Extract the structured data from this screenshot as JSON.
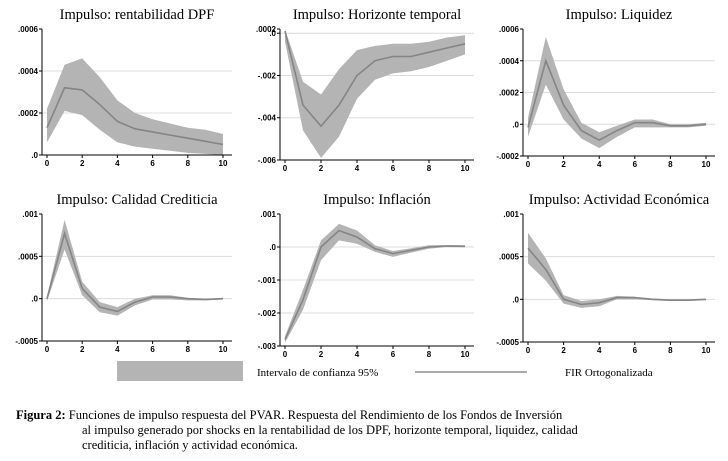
{
  "chart_data": [
    {
      "type": "line",
      "title": "Impulso: rentabilidad DPF",
      "x": [
        0,
        1,
        2,
        3,
        4,
        5,
        6,
        7,
        8,
        9,
        10
      ],
      "xticks": [
        "0",
        "2",
        "4",
        "6",
        "8",
        "10"
      ],
      "ylim": [
        0,
        0.0006
      ],
      "yticks": [
        0,
        0.0002,
        0.0004,
        0.0006
      ],
      "yticklabels": [
        ".0",
        ".0002",
        ".0004",
        ".0006"
      ],
      "series": [
        {
          "role": "irf",
          "values": [
            0.00013,
            0.00032,
            0.00031,
            0.00024,
            0.00016,
            0.000125,
            0.00011,
            9.5e-05,
            8e-05,
            6.5e-05,
            5e-05
          ]
        },
        {
          "role": "upper",
          "values": [
            0.00022,
            0.00043,
            0.00046,
            0.00037,
            0.00026,
            0.0002,
            0.00017,
            0.00015,
            0.00013,
            0.00012,
            0.0001
          ]
        },
        {
          "role": "lower",
          "values": [
            6e-05,
            0.00021,
            0.00019,
            0.00012,
            6e-05,
            4e-05,
            3e-05,
            2e-05,
            1e-05,
            5e-06,
            0.0
          ]
        }
      ]
    },
    {
      "type": "line",
      "title": "Impulso: Horizonte temporal",
      "x": [
        0,
        1,
        2,
        3,
        4,
        5,
        6,
        7,
        8,
        9,
        10
      ],
      "xticks": [
        "0",
        "2",
        "4",
        "6",
        "8",
        "10"
      ],
      "ylim": [
        -0.006,
        0.0002
      ],
      "yticks": [
        -0.006,
        -0.004,
        -0.002,
        0.0,
        0.0002
      ],
      "yticklabels": [
        "-.006",
        "-.004",
        "-.002",
        ".0",
        ".0002"
      ],
      "series": [
        {
          "role": "irf",
          "values": [
            0.0001,
            -0.0034,
            -0.0044,
            -0.0034,
            -0.002,
            -0.0013,
            -0.0011,
            -0.0011,
            -0.0009,
            -0.0007,
            -0.0005
          ]
        },
        {
          "role": "upper",
          "values": [
            0.00018,
            -0.0023,
            -0.0029,
            -0.0017,
            -0.0008,
            -0.0006,
            -0.0005,
            -0.0005,
            -0.0004,
            -0.0002,
            -0.0001
          ]
        },
        {
          "role": "lower",
          "values": [
            -0.0004,
            -0.0046,
            -0.0059,
            -0.0049,
            -0.0031,
            -0.0022,
            -0.0019,
            -0.0018,
            -0.0016,
            -0.0013,
            -0.001
          ]
        }
      ]
    },
    {
      "type": "line",
      "title": "Impulso: Liquidez",
      "x": [
        0,
        1,
        2,
        3,
        4,
        5,
        6,
        7,
        8,
        9,
        10
      ],
      "xticks": [
        "0",
        "2",
        "4",
        "6",
        "8",
        "10"
      ],
      "ylim": [
        -0.0002,
        0.0006
      ],
      "yticks": [
        -0.0002,
        0.0,
        0.0002,
        0.0004,
        0.0006
      ],
      "yticklabels": [
        "-.0002",
        ".0",
        ".0002",
        ".0004",
        ".0006"
      ],
      "series": [
        {
          "role": "irf",
          "values": [
            -2e-05,
            0.0004,
            0.00012,
            -4e-05,
            -0.0001,
            -4e-05,
            1e-05,
            1e-05,
            -1e-05,
            -1e-05,
            0.0
          ]
        },
        {
          "role": "upper",
          "values": [
            4e-05,
            0.00055,
            0.00022,
            1e-05,
            -5e-05,
            -1e-05,
            3e-05,
            3e-05,
            0.0,
            0.0,
            1e-05
          ]
        },
        {
          "role": "lower",
          "values": [
            -8e-05,
            0.00025,
            3e-05,
            -9e-05,
            -0.00015,
            -8e-05,
            -2e-05,
            -2e-05,
            -2e-05,
            -2e-05,
            -1e-05
          ]
        }
      ]
    },
    {
      "type": "line",
      "title": "Impulso: Calidad Crediticia",
      "x": [
        0,
        1,
        2,
        3,
        4,
        5,
        6,
        7,
        8,
        9,
        10
      ],
      "xticks": [
        "0",
        "2",
        "4",
        "6",
        "8",
        "10"
      ],
      "ylim": [
        -0.0005,
        0.001
      ],
      "yticks": [
        -0.0005,
        0.0,
        0.0005,
        0.001
      ],
      "yticklabels": [
        "-.0005",
        ".0",
        ".0005",
        ".001"
      ],
      "series": [
        {
          "role": "irf",
          "values": [
            0.0,
            0.00077,
            0.00012,
            -0.0001,
            -0.00015,
            -4e-05,
            2e-05,
            2e-05,
            0.0,
            -1e-05,
            0.0
          ]
        },
        {
          "role": "upper",
          "values": [
            3e-05,
            0.00093,
            0.0002,
            -4e-05,
            -0.0001,
            0.0,
            4e-05,
            4e-05,
            1e-05,
            0.0,
            1e-05
          ]
        },
        {
          "role": "lower",
          "values": [
            -3e-05,
            0.00058,
            4e-05,
            -0.00016,
            -0.0002,
            -8e-05,
            -1e-05,
            -1e-05,
            -2e-05,
            -2e-05,
            -1e-05
          ]
        }
      ]
    },
    {
      "type": "line",
      "title": "Impulso: Inflación",
      "x": [
        0,
        1,
        2,
        3,
        4,
        5,
        6,
        7,
        8,
        9,
        10
      ],
      "xticks": [
        "0",
        "2",
        "4",
        "6",
        "8",
        "10"
      ],
      "ylim": [
        -0.003,
        0.001
      ],
      "yticks": [
        -0.003,
        -0.002,
        -0.001,
        0.0,
        0.001
      ],
      "yticklabels": [
        "-.003",
        "-.002",
        "-.001",
        ".0",
        ".001"
      ],
      "series": [
        {
          "role": "irf",
          "values": [
            -0.0028,
            -0.0016,
            0.0,
            0.0005,
            0.0003,
            -5e-05,
            -0.0002,
            -0.0001,
            0.0,
            3e-05,
            2e-05
          ]
        },
        {
          "role": "upper",
          "values": [
            -0.0027,
            -0.0013,
            0.0002,
            0.0007,
            0.0005,
            5e-05,
            -0.00012,
            -4e-05,
            5e-05,
            6e-05,
            5e-05
          ]
        },
        {
          "role": "lower",
          "values": [
            -0.0029,
            -0.0019,
            -0.0004,
            0.0002,
            0.0001,
            -0.00015,
            -0.0003,
            -0.00017,
            -5e-05,
            0.0,
            -1e-05
          ]
        }
      ]
    },
    {
      "type": "line",
      "title": "Impulso: Actividad Económica",
      "x": [
        0,
        1,
        2,
        3,
        4,
        5,
        6,
        7,
        8,
        9,
        10
      ],
      "xticks": [
        "0",
        "2",
        "4",
        "6",
        "8",
        "10"
      ],
      "ylim": [
        -0.0005,
        0.001
      ],
      "yticks": [
        -0.0005,
        0.0,
        0.0005,
        0.001
      ],
      "yticklabels": [
        "-.0005",
        ".0",
        ".0005",
        ".001"
      ],
      "series": [
        {
          "role": "irf",
          "values": [
            0.0006,
            0.00035,
            0.0,
            -6e-05,
            -4e-05,
            2e-05,
            2e-05,
            0.0,
            -1e-05,
            -1e-05,
            0.0
          ]
        },
        {
          "role": "upper",
          "values": [
            0.00078,
            0.00048,
            5e-05,
            -2e-05,
            0.0,
            4e-05,
            3e-05,
            1e-05,
            0.0,
            0.0,
            0.0
          ]
        },
        {
          "role": "lower",
          "values": [
            0.00042,
            0.00022,
            -5e-05,
            -0.0001,
            -8e-05,
            0.0,
            0.0,
            -1e-05,
            -2e-05,
            -2e-05,
            -1e-05
          ]
        }
      ]
    }
  ],
  "legend": {
    "band_label": "Intervalo de confianza 95%",
    "line_label": "FIR Ortogonalizada"
  },
  "caption": {
    "label": "Figura 2:",
    "line1": "Funciones de impulso respuesta del PVAR. Respuesta del Rendimiento de los Fondos de Inversión",
    "line2": "al impulso generado por shocks en la rentabilidad de los DPF, horizonte temporal, liquidez, calidad",
    "line3": "crediticia, inflación y actividad económica."
  },
  "colors": {
    "band": "#b4b4b4",
    "line": "#858585",
    "grid": "#dcdcdc",
    "axis": "#000000"
  }
}
